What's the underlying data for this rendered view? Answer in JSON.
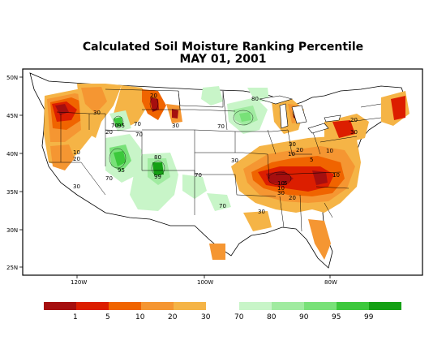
{
  "title": "Calculated Soil Moisture Ranking Percentile",
  "date": "MAY 01, 2001",
  "lat_labels": [
    "50N",
    "45N",
    "40N",
    "35N",
    "30N",
    "25N"
  ],
  "lon_labels": [
    "120W",
    "100W",
    "80W"
  ],
  "legend": {
    "dry_colors": [
      "#a50f0f",
      "#dc1e00",
      "#f06400",
      "#f59632",
      "#f5b446"
    ],
    "wet_colors": [
      "#c8f5c8",
      "#a0eba0",
      "#78e178",
      "#3cc83c",
      "#14a014"
    ],
    "dry_labels": [
      "1",
      "5",
      "10",
      "20",
      "30"
    ],
    "wet_labels": [
      "70",
      "80",
      "90",
      "95",
      "99"
    ]
  },
  "contour_labels": [
    "30",
    "20",
    "70",
    "20",
    "95",
    "70",
    "30",
    "70",
    "80",
    "99",
    "10",
    "20",
    "70",
    "95",
    "30",
    "70",
    "30",
    "80",
    "30",
    "20",
    "30",
    "10",
    "5",
    "10",
    "10",
    "20",
    "10",
    "10",
    "5",
    "30",
    "20",
    "70",
    "70",
    "30"
  ]
}
